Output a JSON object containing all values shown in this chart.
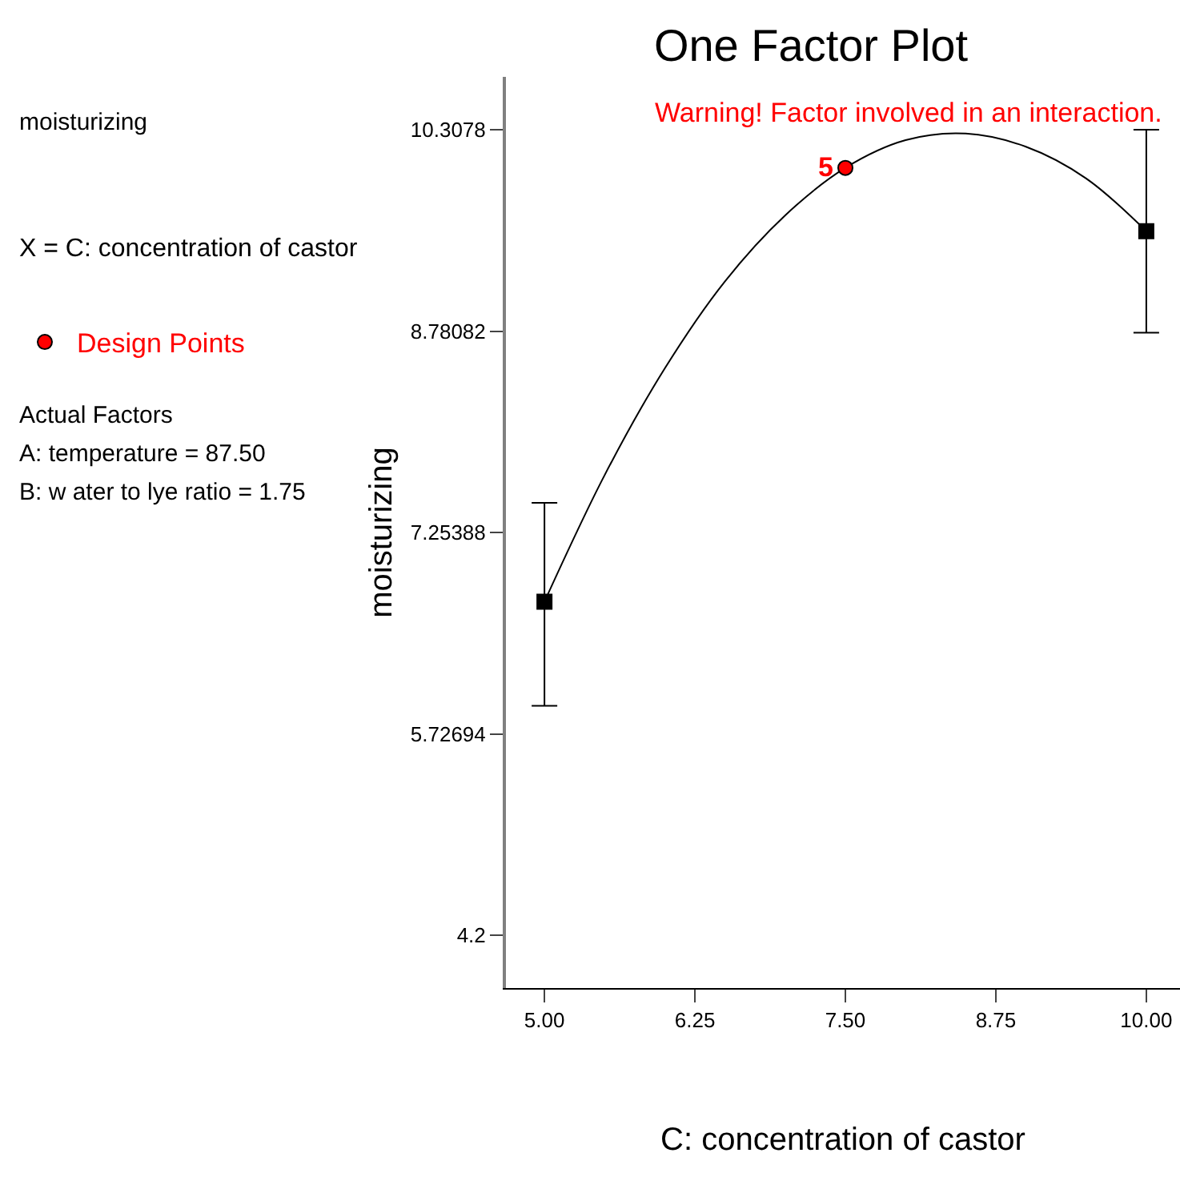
{
  "chart_data": {
    "type": "line",
    "title": "One Factor Plot",
    "xlabel": "C: concentration of castor",
    "ylabel": "moisturizing",
    "annotations": [
      "moisturizing",
      "X = C: concentration of castor",
      "Actual Factors",
      "A: temperature = 87.50",
      "B: w ater to lye ratio = 1.75",
      "Warning! Factor involved in an interaction.",
      {
        "text": "5",
        "x": 7.5,
        "y": 10.02
      }
    ],
    "series": [
      {
        "color": "#000000",
        "marker": "none",
        "line_style": "solid",
        "x": [
          5.0,
          5.5,
          6.0,
          6.5,
          7.0,
          7.5,
          8.0,
          8.5,
          9.0,
          9.5,
          10.0
        ],
        "values": [
          6.73,
          7.69,
          8.5,
          9.16,
          9.66,
          10.02,
          10.23,
          10.28,
          10.18,
          9.94,
          9.54
        ]
      },
      {
        "type": "scatter",
        "color": "#000000",
        "marker": "square",
        "x": [
          5.0,
          10.0
        ],
        "values": [
          6.73,
          9.54
        ],
        "errors": [
          [
            5.94,
            7.48
          ],
          [
            8.77,
            10.31
          ]
        ]
      },
      {
        "type": "scatter",
        "name": "Design Points",
        "color": "#ff0000",
        "marker": "circle",
        "x": [
          7.5
        ],
        "values": [
          10.02
        ]
      }
    ],
    "xlim": [
      4.68,
      10.28
    ],
    "xticks": [
      {
        "value": 5.0,
        "label": "5.00"
      },
      6.25,
      {
        "value": 7.5,
        "label": "7.50"
      },
      8.75,
      {
        "value": 10.0,
        "label": "10.00"
      }
    ],
    "ylim": [
      3.8,
      10.71
    ],
    "yticks": [
      4.2,
      5.72694,
      7.25388,
      8.78082,
      10.3078
    ],
    "grid": false,
    "legend": "top left"
  }
}
